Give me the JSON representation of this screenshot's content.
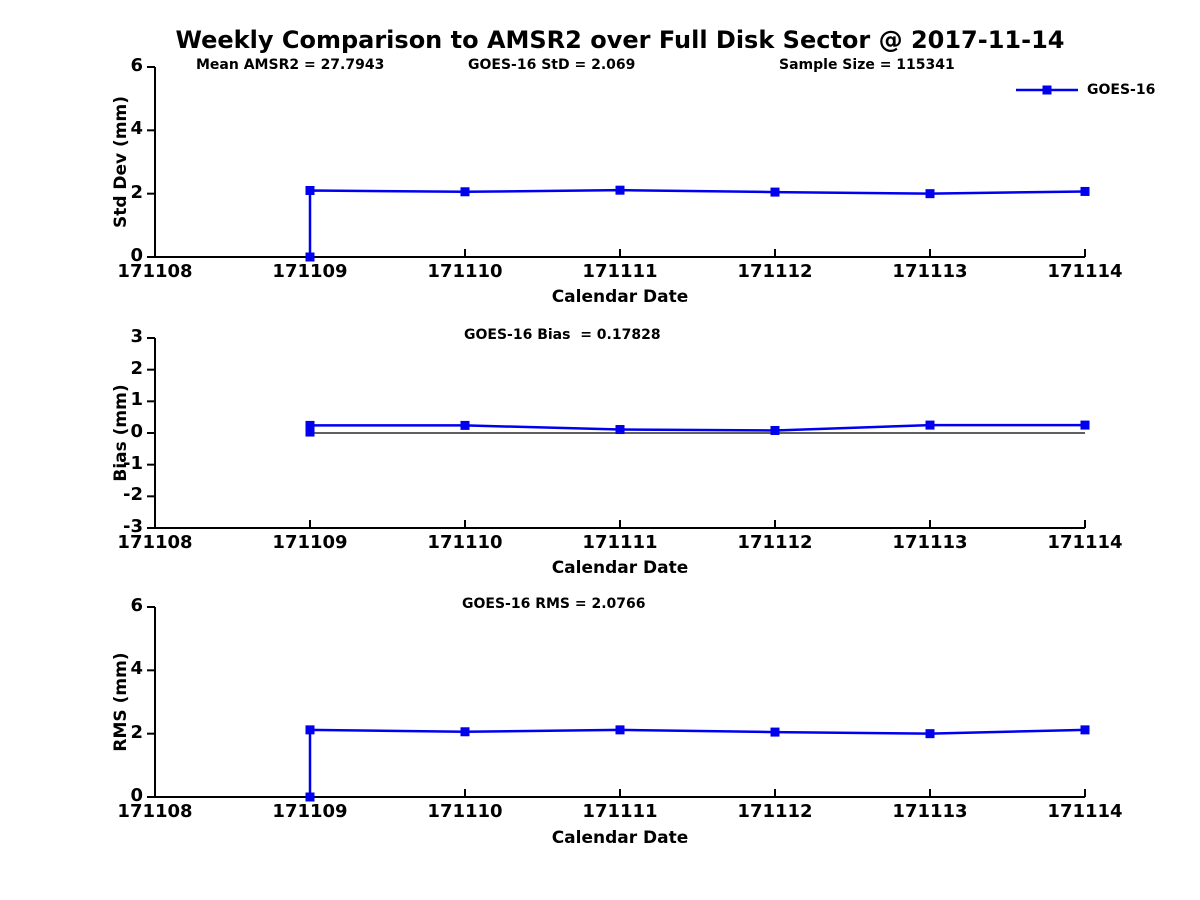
{
  "figure": {
    "title": "Weekly Comparison to AMSR2 over Full Disk Sector @ 2017-11-14",
    "background": "#ffffff",
    "accent_blue": "#0000ee",
    "axis_color": "#000000"
  },
  "legend": {
    "label": "GOES-16",
    "marker": "square-on-line"
  },
  "xaxis": {
    "label": "Calendar Date",
    "ticklabels": [
      "171108",
      "171109",
      "171110",
      "171111",
      "171112",
      "171113",
      "171114"
    ],
    "range": [
      171108,
      171114
    ]
  },
  "chart_data": [
    {
      "type": "line",
      "name": "std-dev-vs-date",
      "annotations": {
        "left": "Mean AMSR2 = 27.7943",
        "center": "GOES-16 StD = 2.069",
        "right": "Sample Size = 115341"
      },
      "ylabel": "Std Dev (mm)",
      "xlabel": "Calendar Date",
      "ylim": [
        0,
        6
      ],
      "yticks": [
        0,
        2,
        4,
        6
      ],
      "zero_line": false,
      "series": [
        {
          "name": "GOES-16",
          "color": "#0000ee",
          "marker": "square",
          "x": [
            171109,
            171109,
            171110,
            171111,
            171112,
            171113,
            171114
          ],
          "y": [
            0,
            2.1,
            2.06,
            2.11,
            2.05,
            2.0,
            2.07
          ]
        }
      ]
    },
    {
      "type": "line",
      "name": "bias-vs-date",
      "annotations": {
        "center": "GOES-16 Bias  = 0.17828"
      },
      "ylabel": "Bias (mm)",
      "xlabel": "Calendar Date",
      "ylim": [
        -3,
        3
      ],
      "yticks": [
        -3,
        -2,
        -1,
        0,
        1,
        2,
        3
      ],
      "zero_line": true,
      "series": [
        {
          "name": "GOES-16",
          "color": "#0000ee",
          "marker": "square",
          "x": [
            171109,
            171109,
            171110,
            171111,
            171112,
            171113,
            171114
          ],
          "y": [
            0.03,
            0.24,
            0.24,
            0.11,
            0.08,
            0.25,
            0.25
          ]
        }
      ]
    },
    {
      "type": "line",
      "name": "rms-vs-date",
      "annotations": {
        "center": "GOES-16 RMS = 2.0766"
      },
      "ylabel": "RMS (mm)",
      "xlabel": "Calendar Date",
      "ylim": [
        0,
        6
      ],
      "yticks": [
        0,
        2,
        4,
        6
      ],
      "zero_line": false,
      "series": [
        {
          "name": "GOES-16",
          "color": "#0000ee",
          "marker": "square",
          "x": [
            171109,
            171109,
            171110,
            171111,
            171112,
            171113,
            171114
          ],
          "y": [
            0,
            2.12,
            2.06,
            2.12,
            2.05,
            2.0,
            2.12
          ]
        }
      ]
    }
  ]
}
